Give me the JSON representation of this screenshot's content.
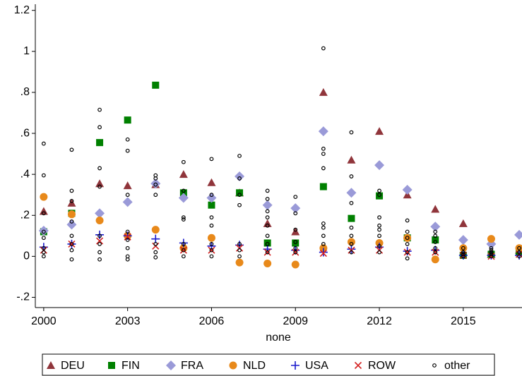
{
  "chart_data": {
    "type": "scatter",
    "xlabel": "none",
    "xlim": [
      1999.7,
      2017.1
    ],
    "ylim": [
      -0.25,
      1.23
    ],
    "xticks": [
      2000,
      2003,
      2006,
      2009,
      2012,
      2015
    ],
    "yticks": [
      {
        "value": -0.2,
        "label": "-.2"
      },
      0,
      {
        "value": 0.2,
        "label": ".2"
      },
      {
        "value": 0.4,
        "label": ".4"
      },
      {
        "value": 0.6,
        "label": ".6"
      },
      {
        "value": 0.8,
        "label": ".8"
      },
      1,
      1.2
    ],
    "grid": false,
    "legend": "bottom",
    "series": [
      {
        "name": "DEU",
        "color": "#90353b",
        "marker": "triangle",
        "x": [
          2000,
          2001,
          2002,
          2003,
          2004,
          2005,
          2006,
          2007,
          2008,
          2009,
          2010,
          2011,
          2012,
          2013,
          2014,
          2015,
          2016,
          2017
        ],
        "values": [
          0.22,
          0.26,
          0.355,
          0.345,
          0.35,
          0.4,
          0.36,
          0.31,
          0.16,
          0.12,
          0.8,
          0.47,
          0.61,
          0.3,
          0.23,
          0.16,
          0.01,
          0.03
        ]
      },
      {
        "name": "FIN",
        "color": "#008000",
        "marker": "square",
        "x": [
          2000,
          2001,
          2002,
          2003,
          2004,
          2005,
          2006,
          2007,
          2008,
          2009,
          2010,
          2011,
          2012,
          2013,
          2014,
          2015,
          2016,
          2017
        ],
        "values": [
          0.12,
          0.21,
          0.555,
          0.665,
          0.835,
          0.31,
          0.25,
          0.31,
          0.065,
          0.065,
          0.34,
          0.185,
          0.295,
          0.09,
          0.08,
          0.005,
          0.01,
          0.02
        ]
      },
      {
        "name": "FRA",
        "color": "#9a9ad8",
        "marker": "diamond",
        "x": [
          2000,
          2001,
          2002,
          2003,
          2004,
          2005,
          2006,
          2007,
          2008,
          2009,
          2010,
          2011,
          2012,
          2013,
          2014,
          2015,
          2016,
          2017
        ],
        "values": [
          0.125,
          0.155,
          0.21,
          0.265,
          0.355,
          0.285,
          0.285,
          0.39,
          0.25,
          0.235,
          0.61,
          0.31,
          0.445,
          0.325,
          0.145,
          0.08,
          0.06,
          0.105
        ]
      },
      {
        "name": "NLD",
        "color": "#e8891a",
        "marker": "circle",
        "x": [
          2000,
          2001,
          2002,
          2003,
          2004,
          2005,
          2006,
          2007,
          2008,
          2009,
          2010,
          2011,
          2012,
          2013,
          2014,
          2015,
          2016,
          2017
        ],
        "values": [
          0.29,
          0.205,
          0.175,
          0.1,
          0.13,
          0.04,
          0.09,
          -0.03,
          -0.035,
          -0.04,
          0.04,
          0.07,
          0.065,
          0.09,
          -0.015,
          0.04,
          0.085,
          0.04
        ]
      },
      {
        "name": "USA",
        "color": "#1a1acc",
        "marker": "plus",
        "x": [
          2000,
          2001,
          2002,
          2003,
          2004,
          2005,
          2006,
          2007,
          2008,
          2009,
          2010,
          2011,
          2012,
          2013,
          2014,
          2015,
          2016,
          2017
        ],
        "values": [
          0.045,
          0.06,
          0.105,
          0.1,
          0.085,
          0.065,
          0.05,
          0.055,
          0.035,
          0.03,
          0.02,
          0.035,
          0.045,
          0.025,
          0.03,
          0.005,
          0.005,
          0.005
        ]
      },
      {
        "name": "ROW",
        "color": "#d42020",
        "marker": "cross",
        "x": [
          2000,
          2001,
          2002,
          2003,
          2004,
          2005,
          2006,
          2007,
          2008,
          2009,
          2010,
          2011,
          2012,
          2013,
          2014,
          2015,
          2016,
          2017
        ],
        "values": [
          0.03,
          0.06,
          0.075,
          0.095,
          0.05,
          0.03,
          0.03,
          0.04,
          0.02,
          0.02,
          0.015,
          0.03,
          0.03,
          0.02,
          0.02,
          0.005,
          0.0,
          0.01
        ]
      },
      {
        "name": "other",
        "color": "#000000",
        "marker": "hollow",
        "x": [
          2000,
          2000,
          2000,
          2000,
          2000,
          2000,
          2000,
          2000,
          2001,
          2001,
          2001,
          2001,
          2001,
          2001,
          2001,
          2001,
          2002,
          2002,
          2002,
          2002,
          2002,
          2002,
          2002,
          2002,
          2003,
          2003,
          2003,
          2003,
          2003,
          2003,
          2003,
          2003,
          2004,
          2004,
          2004,
          2004,
          2004,
          2004,
          2004,
          2005,
          2005,
          2005,
          2005,
          2005,
          2005,
          2005,
          2006,
          2006,
          2006,
          2006,
          2006,
          2006,
          2006,
          2007,
          2007,
          2007,
          2007,
          2007,
          2007,
          2007,
          2008,
          2008,
          2008,
          2008,
          2008,
          2008,
          2008,
          2008,
          2009,
          2009,
          2009,
          2009,
          2009,
          2009,
          2010,
          2010,
          2010,
          2010,
          2010,
          2010,
          2010,
          2010,
          2011,
          2011,
          2011,
          2011,
          2011,
          2011,
          2011,
          2012,
          2012,
          2012,
          2012,
          2012,
          2012,
          2012,
          2012,
          2013,
          2013,
          2013,
          2013,
          2013,
          2013,
          2014,
          2014,
          2014,
          2014,
          2014,
          2015,
          2015,
          2015,
          2015,
          2016,
          2016,
          2016,
          2016,
          2016,
          2017,
          2017,
          2017
        ],
        "values": [
          0.55,
          0.395,
          0.21,
          0.12,
          0.09,
          0.04,
          0.02,
          0,
          0.52,
          0.32,
          0.27,
          0.17,
          0.1,
          0.06,
          0.03,
          -0.015,
          0.715,
          0.63,
          0.43,
          0.34,
          0.1,
          0.06,
          0.02,
          -0.015,
          0.57,
          0.515,
          0.3,
          0.12,
          0.08,
          0.04,
          0,
          -0.015,
          0.395,
          0.38,
          0.3,
          0.35,
          0.06,
          0.02,
          -0.005,
          0.46,
          0.32,
          0.19,
          0.18,
          0.06,
          0.03,
          0,
          0.475,
          0.3,
          0.19,
          0.15,
          0.06,
          0.03,
          0,
          0.49,
          0.38,
          0.3,
          0.25,
          0.06,
          0.03,
          0,
          0.32,
          0.28,
          0.22,
          0.19,
          0.15,
          0.1,
          0.06,
          0.02,
          0.29,
          0.21,
          0.13,
          0.07,
          0.04,
          0.02,
          1.015,
          0.525,
          0.5,
          0.43,
          0.16,
          0.14,
          0.1,
          0.06,
          0.605,
          0.39,
          0.26,
          0.14,
          0.1,
          0.06,
          0.02,
          0.32,
          0.3,
          0.19,
          0.15,
          0.13,
          0.1,
          0.05,
          0.02,
          0.175,
          0.12,
          0.09,
          0.06,
          0.02,
          -0.01,
          0.12,
          0.1,
          0.07,
          0.04,
          0.02,
          0.04,
          0.02,
          0.01,
          0,
          0.04,
          0.03,
          0.02,
          0.01,
          0,
          0.04,
          0.02,
          0
        ]
      }
    ]
  }
}
